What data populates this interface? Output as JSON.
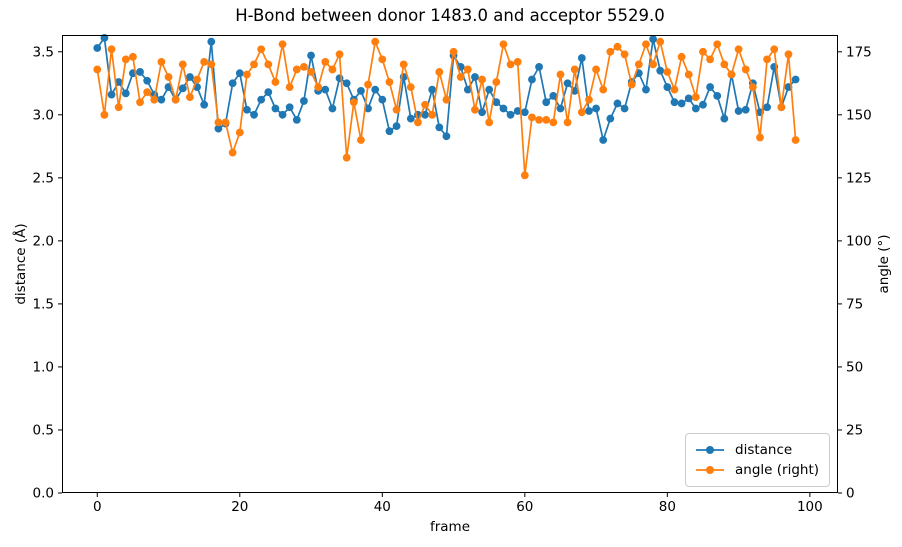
{
  "chart_data": {
    "type": "line",
    "title": "H-Bond between donor 1483.0 and acceptor 5529.0",
    "xlabel": "frame",
    "ylabel_left": "distance (Å)",
    "ylabel_right": "angle (°)",
    "x_ticks": [
      "0",
      "20",
      "40",
      "60",
      "80",
      "100"
    ],
    "x_tick_values": [
      0,
      20,
      40,
      60,
      80,
      100
    ],
    "y_ticks_left": [
      "0.0",
      "0.5",
      "1.0",
      "1.5",
      "2.0",
      "2.5",
      "3.0",
      "3.5"
    ],
    "y_tick_values_left": [
      0,
      0.5,
      1,
      1.5,
      2,
      2.5,
      3,
      3.5
    ],
    "y_ticks_right": [
      "0",
      "25",
      "50",
      "75",
      "100",
      "125",
      "150",
      "175"
    ],
    "y_tick_values_right": [
      0,
      25,
      50,
      75,
      100,
      125,
      150,
      175
    ],
    "xlim": [
      -4.95,
      103.95
    ],
    "ylim_left": [
      0,
      3.633
    ],
    "ylim_right": [
      0,
      181.66
    ],
    "grid": false,
    "legend": {
      "position": "lower right",
      "entries": [
        {
          "label": "distance",
          "color": "#1f77b4"
        },
        {
          "label": "angle (right)",
          "color": "#ff7f0e"
        }
      ]
    },
    "x": [
      0,
      1,
      2,
      3,
      4,
      5,
      6,
      7,
      8,
      9,
      10,
      11,
      12,
      13,
      14,
      15,
      16,
      17,
      18,
      19,
      20,
      21,
      22,
      23,
      24,
      25,
      26,
      27,
      28,
      29,
      30,
      31,
      32,
      33,
      34,
      35,
      36,
      37,
      38,
      39,
      40,
      41,
      42,
      43,
      44,
      45,
      46,
      47,
      48,
      49,
      50,
      51,
      52,
      53,
      54,
      55,
      56,
      57,
      58,
      59,
      60,
      61,
      62,
      63,
      64,
      65,
      66,
      67,
      68,
      69,
      70,
      71,
      72,
      73,
      74,
      75,
      76,
      77,
      78,
      79,
      80,
      81,
      82,
      83,
      84,
      85,
      86,
      87,
      88,
      89,
      90,
      91,
      92,
      93,
      94,
      95,
      96,
      97,
      98
    ],
    "series": [
      {
        "name": "distance",
        "axis": "left",
        "color": "#1f77b4",
        "marker": "circle",
        "values": [
          3.53,
          3.61,
          3.16,
          3.26,
          3.17,
          3.33,
          3.34,
          3.27,
          3.16,
          3.12,
          3.22,
          3.12,
          3.21,
          3.3,
          3.22,
          3.08,
          3.58,
          2.89,
          2.93,
          3.25,
          3.33,
          3.04,
          3.0,
          3.12,
          3.18,
          3.05,
          3.0,
          3.06,
          2.96,
          3.11,
          3.47,
          3.19,
          3.2,
          3.05,
          3.29,
          3.25,
          3.12,
          3.19,
          3.05,
          3.2,
          3.12,
          2.87,
          2.91,
          3.3,
          2.97,
          3.0,
          3.0,
          3.2,
          2.9,
          2.83,
          3.47,
          3.38,
          3.2,
          3.3,
          3.02,
          3.2,
          3.1,
          3.05,
          3.0,
          3.03,
          3.02,
          3.28,
          3.38,
          3.1,
          3.15,
          3.05,
          3.25,
          3.19,
          3.45,
          3.03,
          3.05,
          2.8,
          2.97,
          3.09,
          3.05,
          3.26,
          3.33,
          3.2,
          3.6,
          3.35,
          3.22,
          3.1,
          3.09,
          3.13,
          3.05,
          3.08,
          3.22,
          3.15,
          2.97,
          3.32,
          3.03,
          3.04,
          3.25,
          3.02,
          3.06,
          3.38,
          3.06,
          3.22,
          3.28
        ]
      },
      {
        "name": "angle (right)",
        "axis": "right",
        "color": "#ff7f0e",
        "marker": "circle",
        "values": [
          168,
          150,
          176,
          153,
          172,
          173,
          155,
          159,
          156,
          171,
          165,
          156,
          170,
          157,
          164,
          171,
          170,
          147,
          147,
          135,
          143,
          166,
          170,
          176,
          170,
          163,
          178,
          161,
          168,
          169,
          167,
          161,
          171,
          168,
          174,
          133,
          155,
          140,
          162,
          179,
          172,
          163,
          152,
          170,
          161,
          147,
          154,
          150,
          167,
          156,
          175,
          165,
          168,
          152,
          164,
          147,
          163,
          178,
          170,
          171,
          126,
          149,
          148,
          148,
          147,
          166,
          147,
          168,
          151,
          156,
          168,
          160,
          175,
          177,
          174,
          162,
          170,
          178,
          170,
          179,
          167,
          160,
          173,
          166,
          157,
          175,
          172,
          178,
          170,
          166,
          176,
          168,
          161,
          141,
          172,
          176,
          153,
          174,
          140
        ]
      }
    ]
  }
}
